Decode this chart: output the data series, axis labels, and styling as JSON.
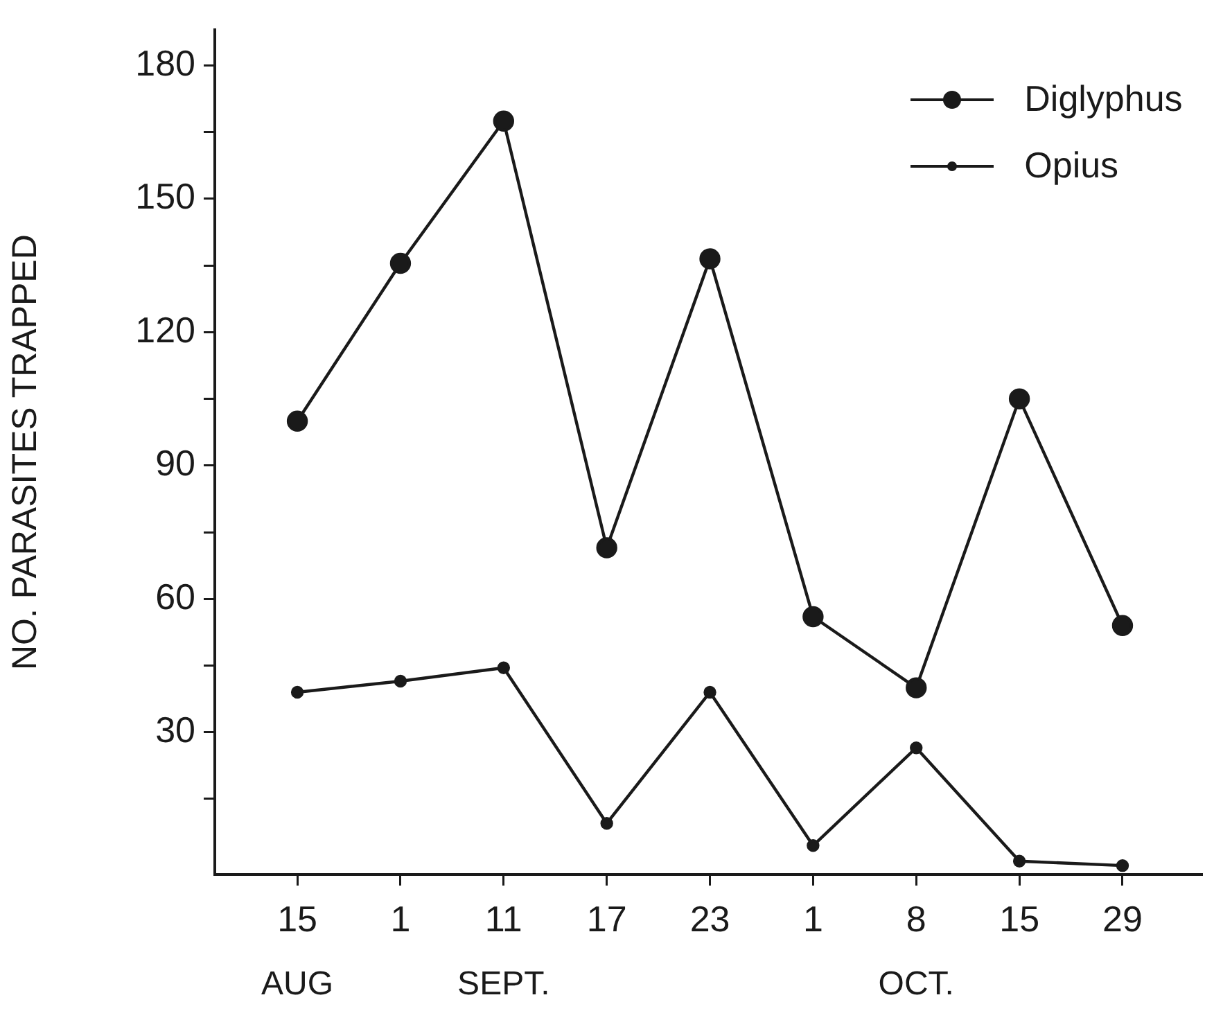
{
  "chart_data": {
    "type": "line",
    "ylabel": "NO. PARASITES TRAPPED",
    "categories": [
      "15",
      "1",
      "11",
      "17",
      "23",
      "1",
      "8",
      "15",
      "29"
    ],
    "series": [
      {
        "name": "Diglyphus",
        "color": "#1a1a1a",
        "values": [
          100,
          135.5,
          167.5,
          71.5,
          136.5,
          56,
          40,
          105,
          54
        ]
      },
      {
        "name": "Opius",
        "color": "#1a1a1a",
        "values": [
          39,
          41.5,
          44.5,
          9.5,
          39,
          4.5,
          26.5,
          1,
          0
        ]
      }
    ],
    "ylim": [
      -2,
      188
    ],
    "yticks": [
      {
        "value": 15,
        "label": null
      },
      30,
      {
        "value": 45,
        "label": null
      },
      60,
      {
        "value": 75,
        "label": null
      },
      90,
      {
        "value": 105,
        "label": null
      },
      120,
      {
        "value": 135,
        "label": null
      },
      150,
      {
        "value": 165,
        "label": null
      },
      180
    ],
    "annotations": [
      "AUG",
      "SEPT.",
      "OCT."
    ],
    "legend": "top right",
    "marker": "circle",
    "grid": false
  }
}
